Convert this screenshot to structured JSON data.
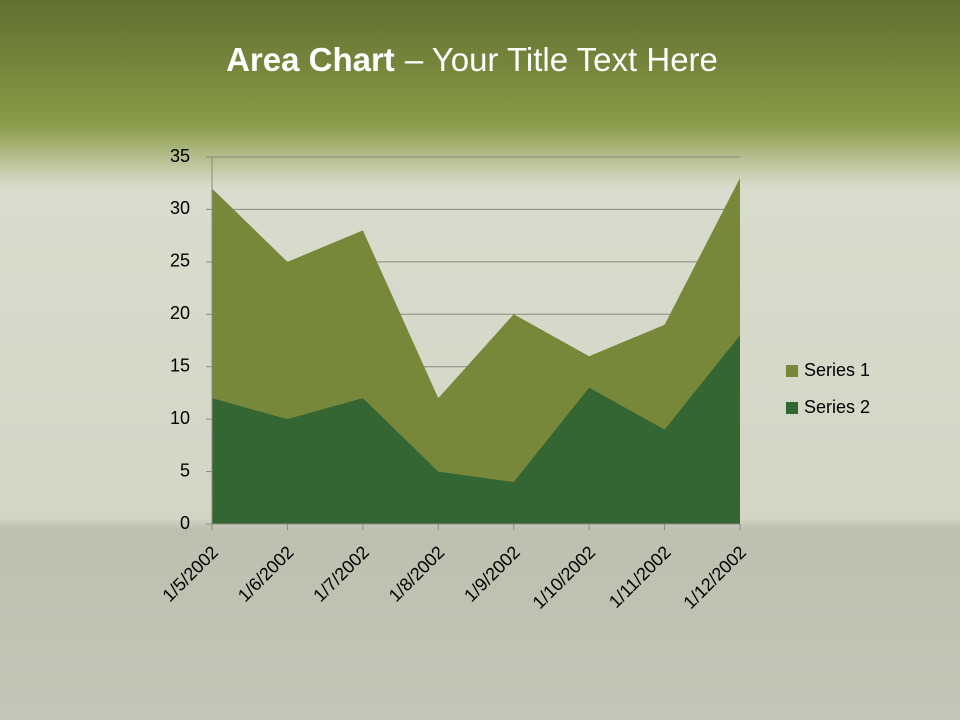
{
  "chart_data": {
    "type": "area",
    "title": [
      "Area Chart",
      "– Your Title Text Here"
    ],
    "categories": [
      "1/5/2002",
      "1/6/2002",
      "1/7/2002",
      "1/8/2002",
      "1/9/2002",
      "1/10/2002",
      "1/11/2002",
      "1/12/2002"
    ],
    "series": [
      {
        "name": "Series 1",
        "color": "#77883a",
        "values": [
          32,
          25,
          28,
          12,
          20,
          16,
          19,
          33
        ]
      },
      {
        "name": "Series 2",
        "color": "#346634",
        "values": [
          12,
          10,
          12,
          5,
          4,
          13,
          9,
          18
        ]
      }
    ],
    "ylim": [
      0,
      35
    ],
    "yticks": [
      0,
      5,
      10,
      15,
      20,
      25,
      30,
      35
    ],
    "grid": true,
    "legend": "right"
  }
}
